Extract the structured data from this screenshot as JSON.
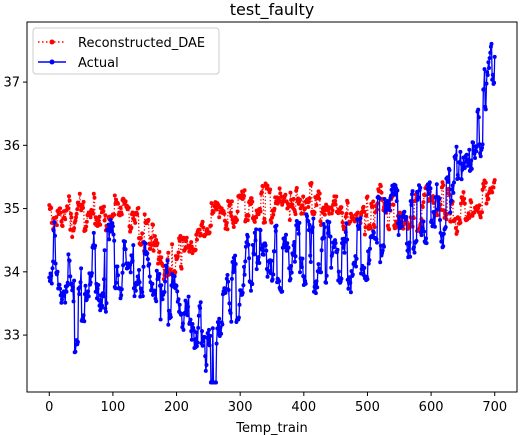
{
  "chart_data": {
    "type": "line",
    "title": "test_faulty",
    "xlabel": "Temp_train",
    "ylabel": "",
    "xlim": [
      -35,
      735
    ],
    "ylim": [
      32.1,
      37.95
    ],
    "xticks": [
      0,
      100,
      200,
      300,
      400,
      500,
      600,
      700
    ],
    "yticks": [
      33,
      34,
      35,
      36,
      37
    ],
    "grid": false,
    "legend_position": "top-left",
    "n_points": 701,
    "series": [
      {
        "name": "Reconstructed_DAE",
        "color": "#ff0000",
        "linestyle": "dotted",
        "marker": "circle",
        "anchors_x": [
          0,
          20,
          40,
          60,
          80,
          100,
          120,
          140,
          160,
          180,
          200,
          220,
          240,
          260,
          280,
          300,
          320,
          340,
          360,
          380,
          400,
          420,
          440,
          460,
          480,
          500,
          520,
          540,
          560,
          580,
          600,
          620,
          640,
          660,
          680,
          700
        ],
        "anchors_y": [
          34.9,
          34.8,
          34.9,
          35.0,
          34.9,
          34.9,
          34.9,
          34.7,
          34.5,
          34.2,
          34.2,
          34.6,
          34.6,
          34.9,
          34.9,
          35.0,
          35.0,
          35.1,
          35.1,
          35.0,
          35.1,
          35.1,
          34.9,
          34.9,
          34.8,
          34.9,
          35.1,
          34.9,
          34.9,
          34.9,
          35.2,
          35.1,
          34.9,
          35.0,
          35.2,
          35.6
        ],
        "spread": 0.28
      },
      {
        "name": "Actual",
        "color": "#0000ff",
        "linestyle": "solid",
        "marker": "circle",
        "anchors_x": [
          0,
          10,
          20,
          30,
          40,
          60,
          80,
          100,
          120,
          140,
          160,
          180,
          200,
          220,
          230,
          240,
          250,
          260,
          270,
          280,
          300,
          320,
          340,
          360,
          380,
          400,
          420,
          440,
          460,
          480,
          500,
          520,
          540,
          560,
          580,
          600,
          620,
          640,
          660,
          680,
          690,
          700
        ],
        "anchors_y": [
          34.3,
          34.3,
          33.5,
          33.9,
          33.3,
          34.0,
          33.9,
          34.2,
          34.1,
          34.3,
          33.7,
          33.6,
          33.7,
          33.4,
          32.9,
          33.1,
          32.9,
          32.6,
          33.2,
          33.4,
          33.8,
          34.1,
          34.1,
          34.1,
          34.1,
          34.3,
          34.3,
          34.3,
          34.3,
          34.3,
          34.3,
          34.7,
          34.9,
          34.8,
          35.0,
          35.0,
          34.9,
          35.7,
          35.7,
          36.3,
          36.9,
          37.4
        ],
        "spread": 0.55
      }
    ]
  }
}
